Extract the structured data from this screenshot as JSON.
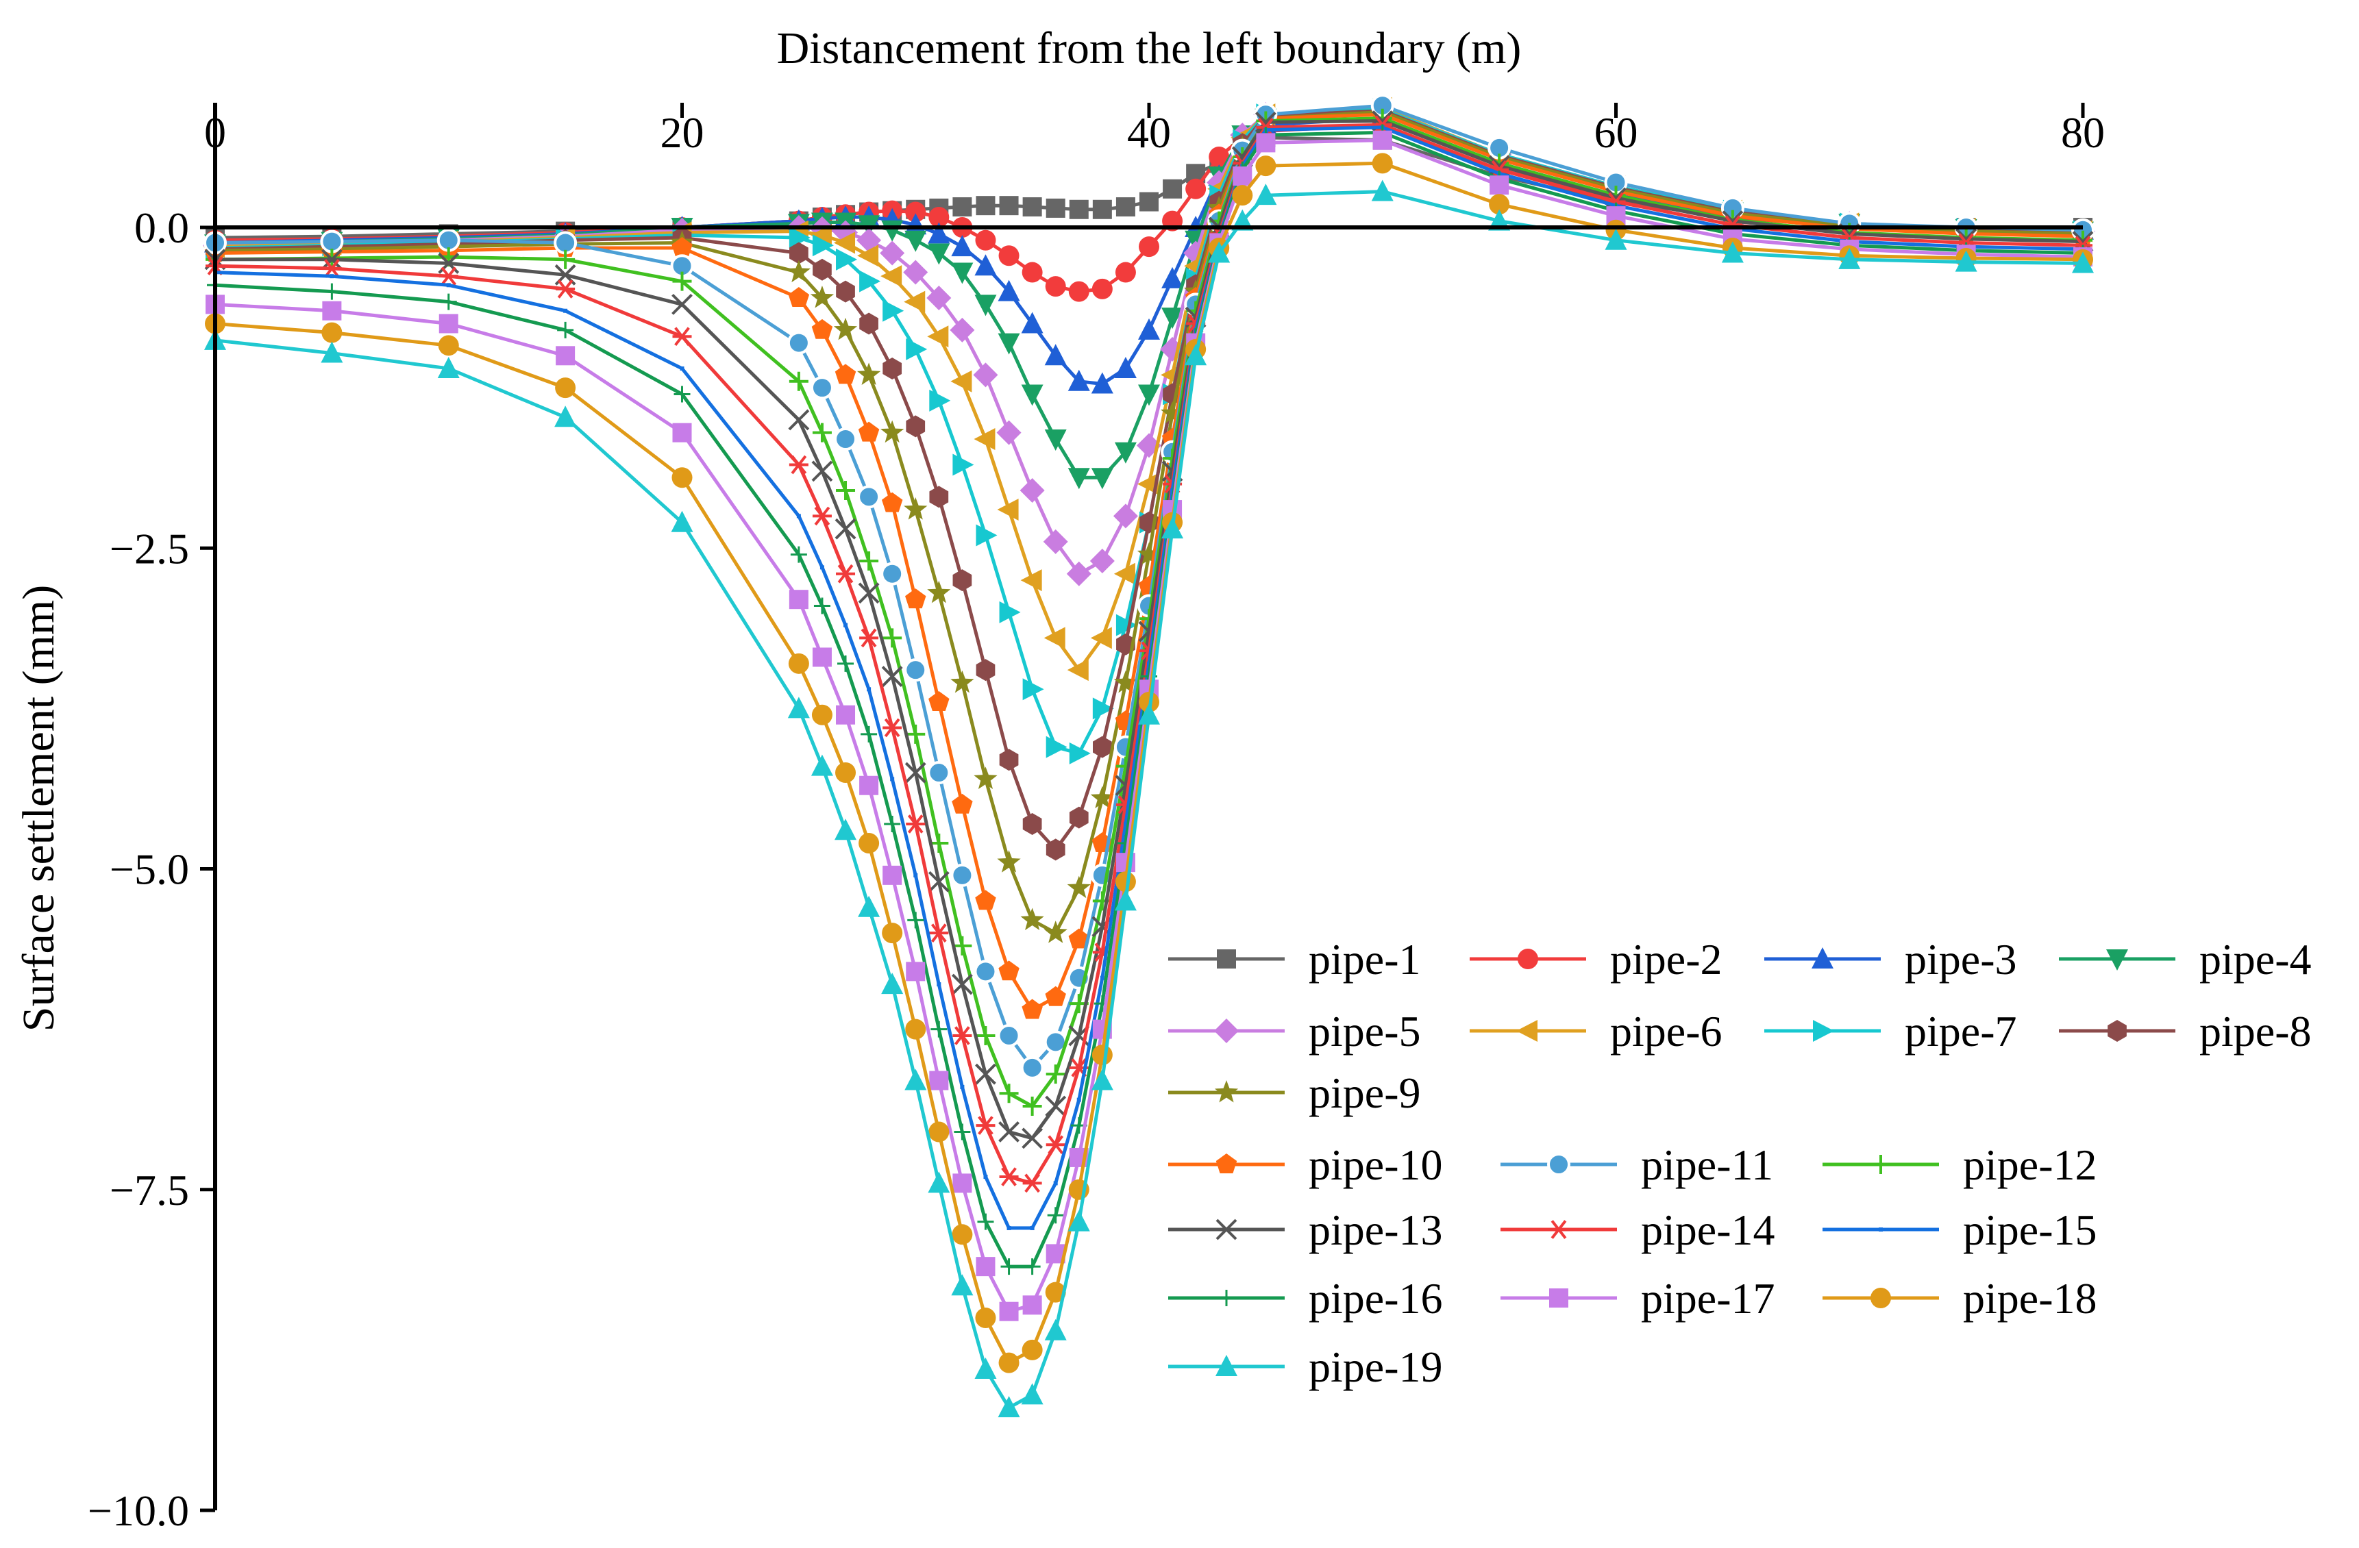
{
  "chart_data": {
    "type": "line",
    "title": "",
    "xlabel": "Distancement from the left boundary (m)",
    "ylabel": "Surface settlement (mm)",
    "xlim": [
      0,
      80
    ],
    "ylim": [
      -10.0,
      1.0
    ],
    "x_axis_position": "top",
    "x_ticks": [
      "0",
      "20",
      "40",
      "60",
      "80"
    ],
    "y_ticks": [
      "0.0",
      "−2.5",
      "−5.0",
      "−7.5",
      "−10.0"
    ],
    "legend_position": "bottom-right",
    "grid": false,
    "x": [
      0,
      5,
      10,
      15,
      20,
      25,
      26,
      27,
      28,
      29,
      30,
      31,
      32,
      33,
      34,
      35,
      36,
      37,
      38,
      39,
      40,
      41,
      42,
      43,
      44,
      45,
      50,
      55,
      60,
      65,
      70,
      75,
      80
    ],
    "series": [
      {
        "name": "pipe-1",
        "color": "#666666",
        "marker": "square",
        "values": [
          -0.08,
          -0.07,
          -0.05,
          -0.03,
          0.0,
          0.05,
          0.08,
          0.1,
          0.12,
          0.13,
          0.14,
          0.15,
          0.16,
          0.17,
          0.17,
          0.16,
          0.15,
          0.14,
          0.14,
          0.16,
          0.2,
          0.3,
          0.42,
          0.5,
          0.6,
          0.7,
          0.68,
          0.4,
          0.2,
          0.08,
          0.02,
          0.0,
          0.0
        ]
      },
      {
        "name": "pipe-2",
        "color": "#f23c3c",
        "marker": "circle",
        "values": [
          -0.1,
          -0.09,
          -0.07,
          -0.04,
          0.0,
          0.05,
          0.08,
          0.1,
          0.12,
          0.13,
          0.12,
          0.08,
          0.0,
          -0.1,
          -0.22,
          -0.35,
          -0.46,
          -0.5,
          -0.48,
          -0.35,
          -0.15,
          0.05,
          0.3,
          0.55,
          0.7,
          0.75,
          0.8,
          0.45,
          0.22,
          0.08,
          0.0,
          -0.02,
          -0.03
        ]
      },
      {
        "name": "pipe-3",
        "color": "#1f5fd6",
        "marker": "triangle-up",
        "values": [
          -0.12,
          -0.1,
          -0.08,
          -0.05,
          0.0,
          0.05,
          0.07,
          0.08,
          0.08,
          0.06,
          0.02,
          -0.05,
          -0.15,
          -0.3,
          -0.5,
          -0.75,
          -1.0,
          -1.2,
          -1.22,
          -1.1,
          -0.8,
          -0.4,
          0.0,
          0.4,
          0.7,
          0.8,
          0.85,
          0.5,
          0.25,
          0.1,
          0.02,
          -0.01,
          -0.02
        ]
      },
      {
        "name": "pipe-4",
        "color": "#1aa063",
        "marker": "triangle-down",
        "values": [
          -0.13,
          -0.11,
          -0.09,
          -0.06,
          0.0,
          0.03,
          0.04,
          0.04,
          0.02,
          -0.02,
          -0.1,
          -0.2,
          -0.35,
          -0.6,
          -0.9,
          -1.3,
          -1.65,
          -1.95,
          -1.95,
          -1.75,
          -1.3,
          -0.7,
          -0.1,
          0.4,
          0.72,
          0.85,
          0.9,
          0.55,
          0.3,
          0.12,
          0.03,
          -0.01,
          -0.03
        ]
      },
      {
        "name": "pipe-5",
        "color": "#c97de0",
        "marker": "diamond",
        "values": [
          -0.14,
          -0.12,
          -0.1,
          -0.07,
          -0.02,
          0.0,
          -0.01,
          -0.04,
          -0.1,
          -0.2,
          -0.35,
          -0.55,
          -0.8,
          -1.15,
          -1.6,
          -2.05,
          -2.45,
          -2.7,
          -2.6,
          -2.25,
          -1.7,
          -0.95,
          -0.2,
          0.35,
          0.72,
          0.88,
          0.93,
          0.57,
          0.32,
          0.13,
          0.03,
          -0.01,
          -0.03
        ]
      },
      {
        "name": "pipe-6",
        "color": "#e0a020",
        "marker": "triangle-left",
        "values": [
          -0.15,
          -0.13,
          -0.11,
          -0.08,
          -0.04,
          -0.03,
          -0.06,
          -0.12,
          -0.22,
          -0.38,
          -0.58,
          -0.85,
          -1.2,
          -1.65,
          -2.2,
          -2.75,
          -3.2,
          -3.45,
          -3.2,
          -2.7,
          -2.0,
          -1.15,
          -0.3,
          0.3,
          0.7,
          0.88,
          0.93,
          0.57,
          0.32,
          0.13,
          0.03,
          -0.01,
          -0.03
        ]
      },
      {
        "name": "pipe-7",
        "color": "#17c8d0",
        "marker": "triangle-right",
        "values": [
          -0.16,
          -0.14,
          -0.12,
          -0.09,
          -0.06,
          -0.08,
          -0.14,
          -0.25,
          -0.42,
          -0.65,
          -0.95,
          -1.35,
          -1.85,
          -2.4,
          -3.0,
          -3.6,
          -4.05,
          -4.1,
          -3.75,
          -3.1,
          -2.3,
          -1.3,
          -0.4,
          0.25,
          0.68,
          0.88,
          0.92,
          0.57,
          0.32,
          0.13,
          0.03,
          -0.01,
          -0.03
        ]
      },
      {
        "name": "pipe-8",
        "color": "#8b4a4a",
        "marker": "hexagon",
        "values": [
          -0.17,
          -0.15,
          -0.13,
          -0.1,
          -0.08,
          -0.2,
          -0.33,
          -0.5,
          -0.75,
          -1.1,
          -1.55,
          -2.1,
          -2.75,
          -3.45,
          -4.15,
          -4.65,
          -4.85,
          -4.6,
          -4.05,
          -3.25,
          -2.3,
          -1.3,
          -0.45,
          0.2,
          0.65,
          0.87,
          0.91,
          0.56,
          0.31,
          0.12,
          0.02,
          -0.02,
          -0.04
        ]
      },
      {
        "name": "pipe-9",
        "color": "#8a8a1e",
        "marker": "star",
        "values": [
          -0.18,
          -0.17,
          -0.15,
          -0.13,
          -0.12,
          -0.35,
          -0.55,
          -0.8,
          -1.15,
          -1.6,
          -2.2,
          -2.85,
          -3.55,
          -4.3,
          -4.95,
          -5.4,
          -5.5,
          -5.15,
          -4.45,
          -3.55,
          -2.55,
          -1.45,
          -0.5,
          0.15,
          0.62,
          0.85,
          0.9,
          0.55,
          0.3,
          0.11,
          0.01,
          -0.03,
          -0.05
        ]
      },
      {
        "name": "pipe-10",
        "color": "#ff6a10",
        "marker": "pentagon",
        "values": [
          -0.2,
          -0.19,
          -0.18,
          -0.16,
          -0.16,
          -0.55,
          -0.8,
          -1.15,
          -1.6,
          -2.15,
          -2.9,
          -3.7,
          -4.5,
          -5.25,
          -5.8,
          -6.1,
          -6.0,
          -5.55,
          -4.8,
          -3.85,
          -2.8,
          -1.65,
          -0.55,
          0.1,
          0.6,
          0.85,
          0.88,
          0.53,
          0.28,
          0.09,
          -0.01,
          -0.05,
          -0.07
        ]
      },
      {
        "name": "pipe-11",
        "color": "#4b9fd5",
        "marker": "sphere",
        "values": [
          -0.12,
          -0.11,
          -0.1,
          -0.12,
          -0.3,
          -0.9,
          -1.25,
          -1.65,
          -2.1,
          -2.7,
          -3.45,
          -4.25,
          -5.05,
          -5.8,
          -6.3,
          -6.55,
          -6.35,
          -5.85,
          -5.05,
          -4.05,
          -2.95,
          -1.75,
          -0.6,
          0.05,
          0.6,
          0.88,
          0.95,
          0.62,
          0.35,
          0.15,
          0.03,
          0.0,
          -0.02
        ]
      },
      {
        "name": "pipe-12",
        "color": "#40c020",
        "marker": "plus",
        "values": [
          -0.25,
          -0.24,
          -0.23,
          -0.25,
          -0.42,
          -1.2,
          -1.6,
          -2.05,
          -2.6,
          -3.2,
          -3.95,
          -4.8,
          -5.6,
          -6.3,
          -6.75,
          -6.85,
          -6.6,
          -6.05,
          -5.25,
          -4.2,
          -3.05,
          -1.8,
          -0.65,
          0.05,
          0.55,
          0.83,
          0.85,
          0.5,
          0.25,
          0.06,
          -0.04,
          -0.08,
          -0.1
        ]
      },
      {
        "name": "pipe-13",
        "color": "#555555",
        "marker": "x",
        "values": [
          -0.25,
          -0.25,
          -0.28,
          -0.37,
          -0.6,
          -1.5,
          -1.9,
          -2.35,
          -2.85,
          -3.5,
          -4.25,
          -5.1,
          -5.9,
          -6.6,
          -7.05,
          -7.1,
          -6.85,
          -6.3,
          -5.45,
          -4.35,
          -3.15,
          -1.9,
          -0.7,
          0.0,
          0.55,
          0.82,
          0.83,
          0.48,
          0.23,
          0.05,
          -0.05,
          -0.09,
          -0.11
        ]
      },
      {
        "name": "pipe-14",
        "color": "#f03a3a",
        "marker": "asterisk",
        "values": [
          -0.3,
          -0.32,
          -0.38,
          -0.48,
          -0.85,
          -1.85,
          -2.25,
          -2.7,
          -3.2,
          -3.9,
          -4.65,
          -5.5,
          -6.3,
          -7.0,
          -7.4,
          -7.45,
          -7.15,
          -6.55,
          -5.65,
          -4.5,
          -3.3,
          -2.0,
          -0.75,
          -0.05,
          0.5,
          0.78,
          0.8,
          0.45,
          0.2,
          0.02,
          -0.08,
          -0.12,
          -0.14
        ]
      },
      {
        "name": "pipe-15",
        "color": "#1470e0",
        "marker": "dash",
        "values": [
          -0.35,
          -0.38,
          -0.45,
          -0.65,
          -1.1,
          -2.25,
          -2.65,
          -3.1,
          -3.6,
          -4.3,
          -5.05,
          -5.9,
          -6.7,
          -7.4,
          -7.8,
          -7.8,
          -7.45,
          -6.8,
          -5.85,
          -4.65,
          -3.4,
          -2.05,
          -0.8,
          -0.08,
          0.48,
          0.76,
          0.78,
          0.42,
          0.17,
          -0.01,
          -0.11,
          -0.15,
          -0.17
        ]
      },
      {
        "name": "pipe-16",
        "color": "#149a50",
        "marker": "cross",
        "values": [
          -0.45,
          -0.5,
          -0.58,
          -0.8,
          -1.3,
          -2.55,
          -2.95,
          -3.4,
          -3.95,
          -4.65,
          -5.4,
          -6.25,
          -7.05,
          -7.75,
          -8.1,
          -8.1,
          -7.7,
          -7.0,
          -6.05,
          -4.8,
          -3.5,
          -2.15,
          -0.85,
          -0.1,
          0.45,
          0.72,
          0.74,
          0.38,
          0.13,
          -0.05,
          -0.14,
          -0.18,
          -0.2
        ]
      },
      {
        "name": "pipe-17",
        "color": "#c77ce8",
        "marker": "square",
        "values": [
          -0.6,
          -0.65,
          -0.75,
          -1.0,
          -1.6,
          -2.9,
          -3.35,
          -3.8,
          -4.35,
          -5.05,
          -5.8,
          -6.65,
          -7.45,
          -8.1,
          -8.45,
          -8.4,
          -8.0,
          -7.25,
          -6.25,
          -4.95,
          -3.6,
          -2.2,
          -0.9,
          -0.12,
          0.4,
          0.66,
          0.68,
          0.33,
          0.09,
          -0.09,
          -0.17,
          -0.21,
          -0.23
        ]
      },
      {
        "name": "pipe-18",
        "color": "#e09a18",
        "marker": "circle",
        "values": [
          -0.75,
          -0.82,
          -0.92,
          -1.25,
          -1.95,
          -3.4,
          -3.8,
          -4.25,
          -4.8,
          -5.5,
          -6.25,
          -7.05,
          -7.85,
          -8.5,
          -8.85,
          -8.75,
          -8.3,
          -7.5,
          -6.45,
          -5.1,
          -3.7,
          -2.3,
          -0.95,
          -0.16,
          0.25,
          0.48,
          0.5,
          0.18,
          -0.02,
          -0.16,
          -0.22,
          -0.24,
          -0.25
        ]
      },
      {
        "name": "pipe-19",
        "color": "#20c8d0",
        "marker": "triangle-up",
        "values": [
          -0.88,
          -0.98,
          -1.1,
          -1.48,
          -2.3,
          -3.75,
          -4.2,
          -4.7,
          -5.3,
          -5.9,
          -6.65,
          -7.45,
          -8.25,
          -8.9,
          -9.2,
          -9.1,
          -8.6,
          -7.75,
          -6.65,
          -5.25,
          -3.8,
          -2.35,
          -1.0,
          -0.2,
          0.05,
          0.25,
          0.28,
          0.05,
          -0.1,
          -0.2,
          -0.25,
          -0.27,
          -0.28
        ]
      }
    ]
  }
}
